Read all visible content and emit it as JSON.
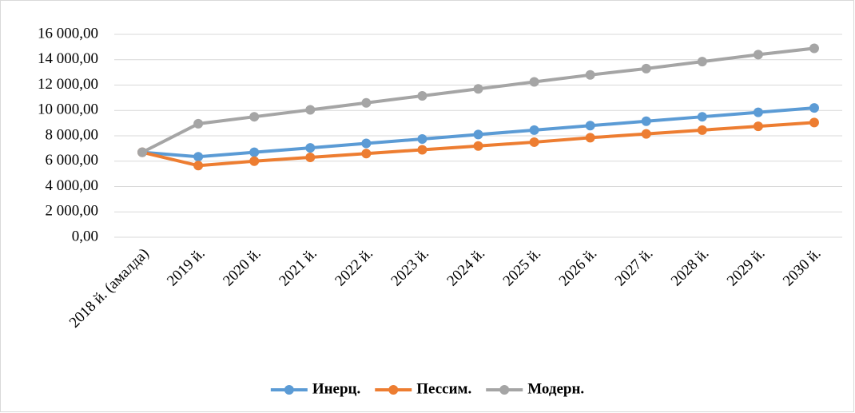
{
  "chart_data": {
    "type": "line",
    "categories": [
      "2018 й. (амалда)",
      "2019 й.",
      "2020 й.",
      "2021 й.",
      "2022 й.",
      "2023 й.",
      "2024 й.",
      "2025 й.",
      "2026 й.",
      "2027 й.",
      "2028 й.",
      "2029 й.",
      "2030 й."
    ],
    "series": [
      {
        "name": "Инерц.",
        "color": "#5b9bd5",
        "values": [
          6700,
          6350,
          6700,
          7050,
          7400,
          7750,
          8100,
          8450,
          8800,
          9150,
          9500,
          9850,
          10200
        ]
      },
      {
        "name": "Пессим.",
        "color": "#ed7d31",
        "values": [
          6700,
          5650,
          6000,
          6300,
          6600,
          6900,
          7200,
          7500,
          7850,
          8150,
          8450,
          8750,
          9050
        ]
      },
      {
        "name": "Модерн.",
        "color": "#a5a5a5",
        "values": [
          6700,
          8950,
          9500,
          10050,
          10600,
          11150,
          11700,
          12250,
          12800,
          13300,
          13850,
          14400,
          14900
        ]
      }
    ],
    "ylim": [
      0,
      16000
    ],
    "yticks": [
      {
        "value": 0,
        "label": "0,00"
      },
      {
        "value": 2000,
        "label": "2 000,00"
      },
      {
        "value": 4000,
        "label": "4 000,00"
      },
      {
        "value": 6000,
        "label": "6 000,00"
      },
      {
        "value": 8000,
        "label": "8 000,00"
      },
      {
        "value": 10000,
        "label": "10 000,00"
      },
      {
        "value": 12000,
        "label": "12 000,00"
      },
      {
        "value": 14000,
        "label": "14 000,00"
      },
      {
        "value": 16000,
        "label": "16 000,00"
      }
    ],
    "grid": true,
    "legend": "bottom"
  }
}
